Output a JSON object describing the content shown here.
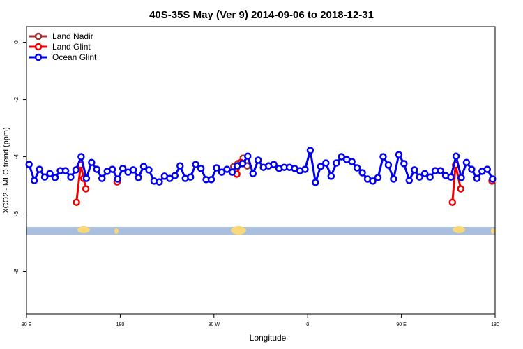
{
  "chart_data": {
    "type": "line",
    "title": "40S-35S May (Ver 9)   2014-09-06 to 2018-12-31",
    "xlabel": "Longitude",
    "ylabel": "XCO2 - MLO trend (ppm)",
    "xlim": [
      90,
      540
    ],
    "xticks": [
      {
        "value": 90,
        "label": "90 E"
      },
      180,
      {
        "value": 270,
        "label": "90 W"
      },
      {
        "value": 360,
        "label": "0"
      },
      {
        "value": 450,
        "label": "90 E"
      },
      {
        "value": 540,
        "label": "180"
      }
    ],
    "ylim": [
      -9.5,
      0.55
    ],
    "yticks": [
      0,
      -2,
      -4,
      -6,
      -8
    ],
    "legend": "top-left",
    "series": [
      {
        "name": "Land Nadir",
        "color": "#a03232",
        "x": [
          289,
          293,
          298,
          302
        ],
        "values": [
          -4.34,
          -4.24,
          -4.05,
          -4.32
        ]
      },
      {
        "name": "Land Glint",
        "color": "#ee0000",
        "x": [
          138,
          142,
          145,
          147,
          160,
          177,
          200,
          292,
          296,
          400,
          499,
          502,
          507,
          520,
          537
        ],
        "values": [
          -5.59,
          -4.29,
          -4.76,
          -5.12,
          null,
          -4.88,
          null,
          -4.61,
          -4.2,
          null,
          -5.59,
          -4.29,
          -5.12,
          null,
          -4.85
        ]
      },
      {
        "name": "Ocean Glint",
        "color": "#0000ee",
        "x": [
          92.5,
          97.5,
          102.5,
          107.5,
          112.5,
          117.5,
          122.5,
          127.5,
          132.5,
          137.5,
          142.5,
          147.5,
          152.5,
          157.5,
          162.5,
          167.5,
          172.5,
          177.5,
          182.5,
          187.5,
          192.5,
          197.5,
          202.5,
          207.5,
          212.5,
          217.5,
          222.5,
          227.5,
          232.5,
          237.5,
          242.5,
          247.5,
          252.5,
          257.5,
          262.5,
          267.5,
          272.5,
          277.5,
          282.5,
          287.5,
          292.5,
          297.5,
          302.5,
          307.5,
          312.5,
          317.5,
          322.5,
          327.5,
          332.5,
          337.5,
          342.5,
          347.5,
          352.5,
          357.5,
          362.5,
          367.5,
          372.5,
          377.5,
          382.5,
          387.5,
          392.5,
          397.5,
          402.5,
          407.5,
          412.5,
          417.5,
          422.5,
          427.5,
          432.5,
          437.5,
          442.5,
          447.5,
          452.5,
          457.5,
          462.5,
          467.5,
          472.5,
          477.5,
          482.5,
          487.5,
          492.5,
          497.5,
          502.5,
          507.5,
          512.5,
          517.5,
          522.5,
          527.5,
          532.5,
          537.5
        ],
        "values": [
          -4.27,
          -4.83,
          -4.44,
          -4.71,
          -4.59,
          -4.73,
          -4.49,
          -4.49,
          -4.71,
          -4.46,
          -4.0,
          -4.76,
          -4.2,
          -4.44,
          -4.76,
          -4.51,
          -4.44,
          -4.78,
          -4.41,
          -4.54,
          -4.46,
          -4.73,
          -4.34,
          -4.46,
          -4.85,
          -4.88,
          -4.68,
          -4.76,
          -4.66,
          -4.32,
          -4.76,
          -4.71,
          -4.27,
          -4.41,
          -4.8,
          -4.8,
          -4.39,
          -4.54,
          -4.44,
          -4.54,
          -4.32,
          -4.24,
          -3.98,
          -4.59,
          -4.12,
          -4.37,
          -4.32,
          -4.27,
          -4.41,
          -4.37,
          -4.37,
          -4.41,
          -4.49,
          -4.44,
          -3.78,
          -4.9,
          -4.34,
          -4.22,
          -4.68,
          -4.22,
          -4.0,
          -4.1,
          -4.17,
          -4.39,
          -4.56,
          -4.78,
          -4.85,
          -4.73,
          -4.0,
          -4.29,
          -4.78,
          -3.93,
          -4.24,
          -4.83,
          -4.46,
          -4.71,
          -4.59,
          -4.71,
          -4.49,
          -4.49,
          -4.66,
          -4.71,
          -3.98,
          -4.73,
          -4.2,
          -4.44,
          -4.76,
          -4.51,
          -4.44,
          -4.78
        ]
      }
    ]
  }
}
